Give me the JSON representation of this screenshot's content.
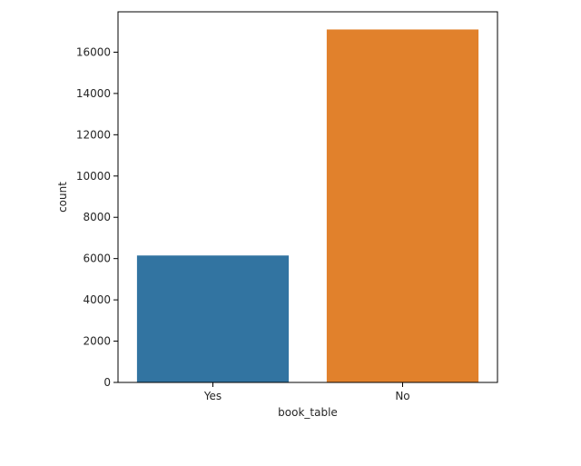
{
  "chart_data": {
    "type": "bar",
    "categories": [
      "Yes",
      "No"
    ],
    "values": [
      6150,
      17100
    ],
    "xlabel": "book_table",
    "ylabel": "count",
    "ylim": [
      0,
      17956
    ],
    "yticks": [
      0,
      2000,
      4000,
      6000,
      8000,
      10000,
      12000,
      14000,
      16000
    ],
    "colors": [
      "#3274a1",
      "#e1812c"
    ],
    "grid": false,
    "legend": "none"
  }
}
